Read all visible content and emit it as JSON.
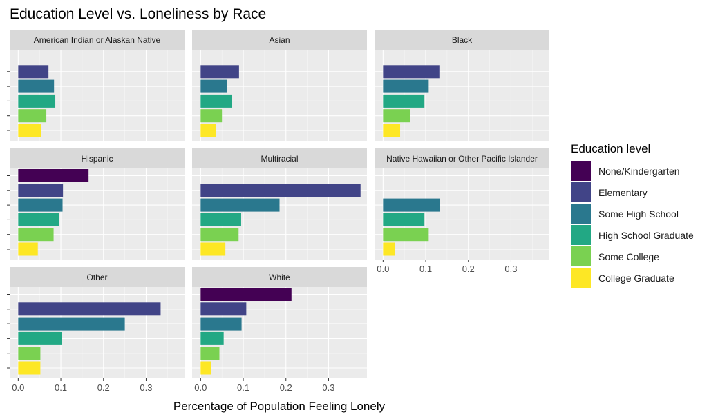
{
  "chart_data": {
    "type": "bar",
    "orientation": "horizontal",
    "title": "Education Level vs. Loneliness by Race",
    "xlabel": "Percentage of Population Feeling Lonely",
    "ylabel": "",
    "xlim": [
      -0.02,
      0.39
    ],
    "x_ticks": [
      "0.0",
      "0.1",
      "0.2",
      "0.3"
    ],
    "grid": true,
    "legend_position": "right",
    "legend": {
      "title": "Education level",
      "entries": [
        {
          "label": "None/Kindergarten",
          "color": "#440154"
        },
        {
          "label": "Elementary",
          "color": "#414487"
        },
        {
          "label": "Some High School",
          "color": "#2A788E"
        },
        {
          "label": "High School Graduate",
          "color": "#22A884"
        },
        {
          "label": "Some College",
          "color": "#7AD151"
        },
        {
          "label": "College Graduate",
          "color": "#FDE725"
        }
      ]
    },
    "panels": [
      {
        "race": "American Indian or Alaskan Native",
        "values": [
          null,
          0.071,
          0.084,
          0.087,
          0.066,
          0.053
        ]
      },
      {
        "race": "Asian",
        "values": [
          null,
          0.09,
          0.062,
          0.073,
          0.05,
          0.036
        ]
      },
      {
        "race": "Black",
        "values": [
          null,
          0.132,
          0.107,
          0.097,
          0.063,
          0.04
        ]
      },
      {
        "race": "Hispanic",
        "values": [
          0.165,
          0.105,
          0.104,
          0.096,
          0.083,
          0.046
        ]
      },
      {
        "race": "Multiracial",
        "values": [
          null,
          0.375,
          0.185,
          0.095,
          0.089,
          0.058
        ]
      },
      {
        "race": "Native Hawaiian or Other Pacific Islander",
        "values": [
          null,
          null,
          0.133,
          0.097,
          0.107,
          0.027
        ]
      },
      {
        "race": "Other",
        "values": [
          null,
          0.334,
          0.25,
          0.102,
          0.052,
          0.052
        ]
      },
      {
        "race": "White",
        "values": [
          0.213,
          0.107,
          0.096,
          0.054,
          0.044,
          0.024
        ]
      }
    ]
  }
}
